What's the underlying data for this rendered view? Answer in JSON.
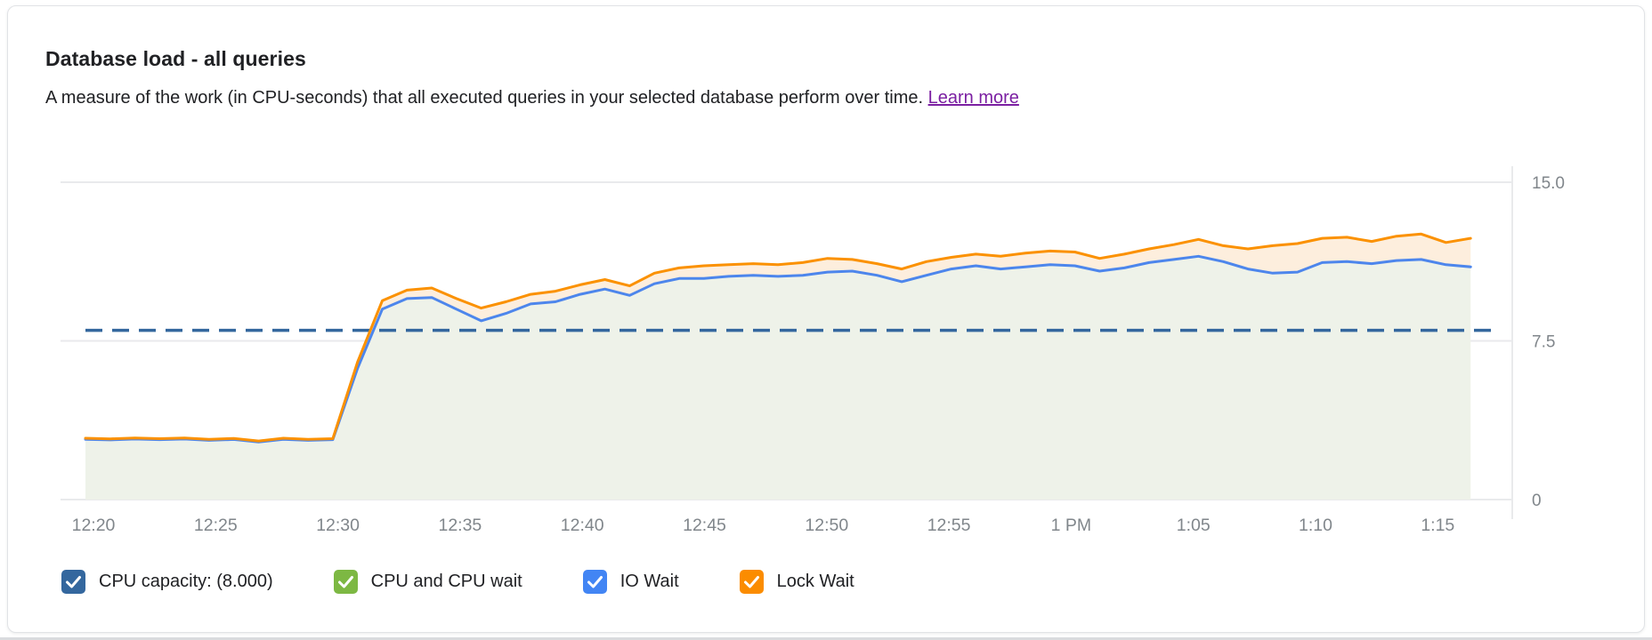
{
  "card": {
    "title": "Database load - all queries",
    "subtitle": "A measure of the work (in CPU-seconds) that all executed queries in your selected database perform over time.",
    "learn_more_label": "Learn more",
    "link_color": "#7b1fa2"
  },
  "chart_data": {
    "type": "area",
    "title": "Database load - all queries",
    "ylabel": "",
    "xlabel": "",
    "ylim": [
      0,
      15
    ],
    "grid": "horizontal-only",
    "legend_position": "bottom",
    "y_ticks": [
      {
        "value": 0,
        "label": "0"
      },
      {
        "value": 7.5,
        "label": "7.5"
      },
      {
        "value": 15,
        "label": "15.0"
      }
    ],
    "x_ticks": [
      "12:20",
      "12:25",
      "12:30",
      "12:35",
      "12:40",
      "12:45",
      "12:50",
      "12:55",
      "1 PM",
      "1:05",
      "1:10",
      "1:15"
    ],
    "times": [
      "12:20",
      "12:21",
      "12:22",
      "12:23",
      "12:24",
      "12:25",
      "12:26",
      "12:27",
      "12:28",
      "12:29",
      "12:30",
      "12:31",
      "12:32",
      "12:33",
      "12:34",
      "12:35",
      "12:36",
      "12:37",
      "12:38",
      "12:39",
      "12:40",
      "12:41",
      "12:42",
      "12:43",
      "12:44",
      "12:45",
      "12:46",
      "12:47",
      "12:48",
      "12:49",
      "12:50",
      "12:51",
      "12:52",
      "12:53",
      "12:54",
      "12:55",
      "12:56",
      "12:57",
      "12:58",
      "12:59",
      "1:00",
      "1:01",
      "1:02",
      "1:03",
      "1:04",
      "1:05",
      "1:06",
      "1:07",
      "1:08",
      "1:09",
      "1:10",
      "1:11",
      "1:12",
      "1:13",
      "1:14",
      "1:15",
      "1:16"
    ],
    "capacity": {
      "name": "CPU capacity",
      "value": 8.0,
      "color": "#34679e",
      "style": "dashed"
    },
    "series": [
      {
        "name": "CPU and CPU wait",
        "role": "stacked-area-top",
        "line_color": "#7db843",
        "fill_color": "#eef2e9",
        "values": [
          2.85,
          2.82,
          2.86,
          2.83,
          2.86,
          2.8,
          2.84,
          2.72,
          2.85,
          2.8,
          2.83,
          6.2,
          9.0,
          9.5,
          9.55,
          9.0,
          8.45,
          8.8,
          9.25,
          9.35,
          9.7,
          9.95,
          9.65,
          10.2,
          10.45,
          10.45,
          10.55,
          10.6,
          10.55,
          10.6,
          10.75,
          10.8,
          10.6,
          10.3,
          10.6,
          10.9,
          11.05,
          10.9,
          11.0,
          11.1,
          11.05,
          10.8,
          10.95,
          11.2,
          11.35,
          11.5,
          11.25,
          10.9,
          10.7,
          10.75,
          11.2,
          11.25,
          11.15,
          11.3,
          11.35,
          11.1,
          11.0
        ]
      },
      {
        "name": "IO Wait",
        "role": "stacked-line-top",
        "line_color": "#4d86ec",
        "values": [
          2.85,
          2.82,
          2.86,
          2.83,
          2.86,
          2.8,
          2.84,
          2.72,
          2.85,
          2.8,
          2.83,
          6.2,
          9.0,
          9.5,
          9.55,
          9.0,
          8.45,
          8.8,
          9.25,
          9.35,
          9.7,
          9.95,
          9.65,
          10.2,
          10.45,
          10.45,
          10.55,
          10.6,
          10.55,
          10.6,
          10.75,
          10.8,
          10.6,
          10.3,
          10.6,
          10.9,
          11.05,
          10.9,
          11.0,
          11.1,
          11.05,
          10.8,
          10.95,
          11.2,
          11.35,
          11.5,
          11.25,
          10.9,
          10.7,
          10.75,
          11.2,
          11.25,
          11.15,
          11.3,
          11.35,
          11.1,
          11.0
        ]
      },
      {
        "name": "Lock Wait",
        "role": "stacked-area-top",
        "line_color": "#fb9100",
        "fill_color": "#fdeedd",
        "values": [
          2.9,
          2.87,
          2.91,
          2.88,
          2.91,
          2.85,
          2.89,
          2.77,
          2.9,
          2.85,
          2.88,
          6.5,
          9.4,
          9.9,
          10.0,
          9.5,
          9.05,
          9.35,
          9.7,
          9.85,
          10.15,
          10.4,
          10.1,
          10.7,
          10.95,
          11.05,
          11.1,
          11.15,
          11.1,
          11.2,
          11.4,
          11.35,
          11.15,
          10.9,
          11.25,
          11.45,
          11.6,
          11.5,
          11.65,
          11.75,
          11.7,
          11.4,
          11.6,
          11.85,
          12.05,
          12.3,
          12.0,
          11.85,
          12.0,
          12.1,
          12.35,
          12.4,
          12.2,
          12.45,
          12.55,
          12.15,
          12.35
        ]
      }
    ],
    "axis_text_color": "#80868b",
    "grid_color": "#e9eaec"
  },
  "legend": {
    "items": [
      {
        "label": "CPU capacity: (8.000)",
        "color": "#34679e"
      },
      {
        "label": "CPU and CPU wait",
        "color": "#7db843"
      },
      {
        "label": "IO Wait",
        "color": "#4285f4"
      },
      {
        "label": "Lock Wait",
        "color": "#fb8c00"
      }
    ]
  }
}
